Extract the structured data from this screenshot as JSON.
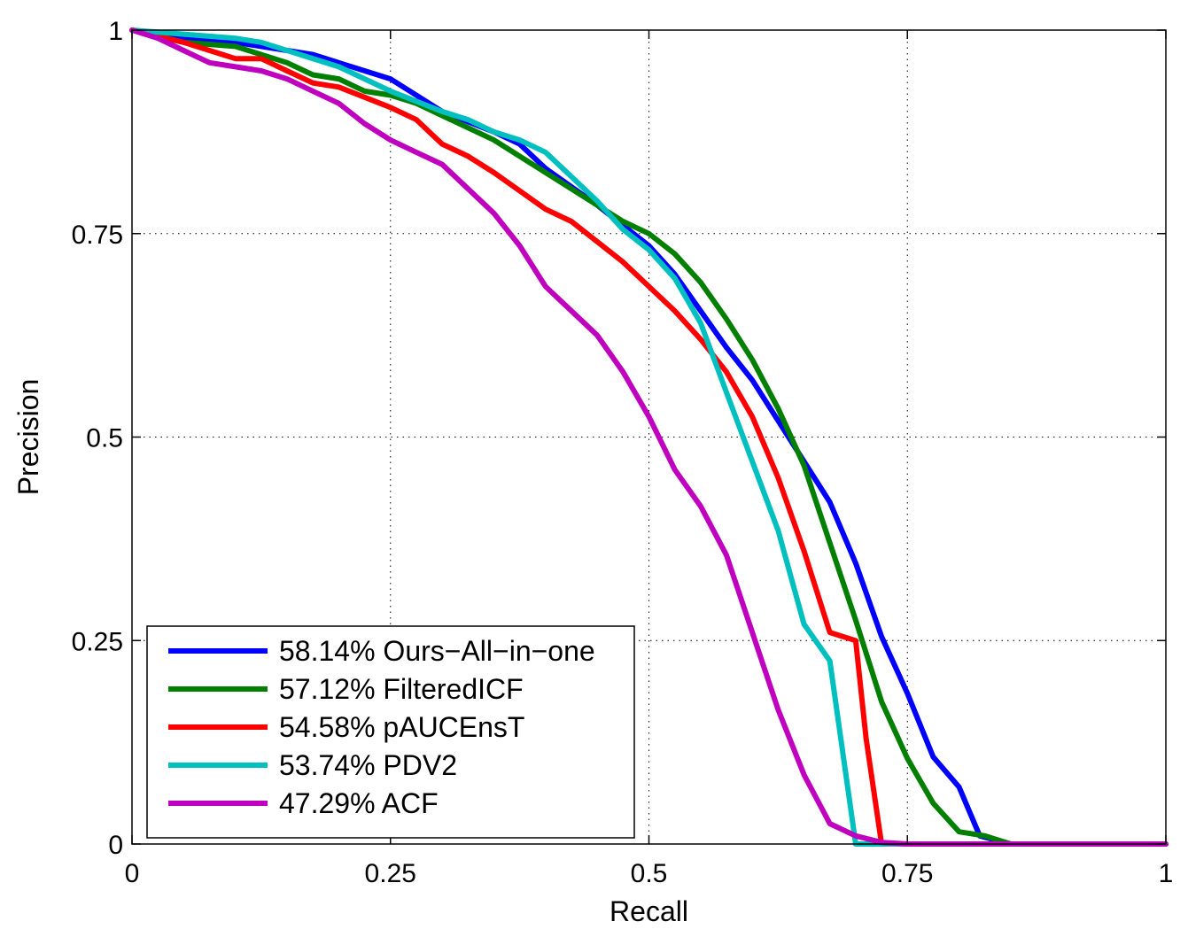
{
  "chart_data": {
    "type": "line",
    "title": "",
    "xlabel": "Recall",
    "ylabel": "Precision",
    "xlim": [
      0,
      1
    ],
    "ylim": [
      0,
      1
    ],
    "x_ticks": [
      0,
      0.25,
      0.5,
      0.75,
      1
    ],
    "x_tick_labels": [
      "0",
      "0.25",
      "0.5",
      "0.75",
      "1"
    ],
    "y_ticks": [
      0,
      0.25,
      0.5,
      0.75,
      1
    ],
    "y_tick_labels": [
      "0",
      "0.25",
      "0.5",
      "0.75",
      "1"
    ],
    "grid": true,
    "legend_position": "bottom-left",
    "series": [
      {
        "name": "Ours-All-in-one",
        "legend_label": "58.14% Ours−All−in−one",
        "color": "#0000ff",
        "x": [
          0,
          0.05,
          0.1,
          0.15,
          0.175,
          0.2,
          0.25,
          0.3,
          0.35,
          0.375,
          0.4,
          0.45,
          0.5,
          0.525,
          0.55,
          0.575,
          0.6,
          0.625,
          0.65,
          0.675,
          0.7,
          0.725,
          0.75,
          0.775,
          0.8,
          0.82,
          0.85,
          0.9,
          1.0
        ],
        "y": [
          1,
          0.99,
          0.985,
          0.975,
          0.97,
          0.96,
          0.94,
          0.9,
          0.875,
          0.86,
          0.83,
          0.785,
          0.735,
          0.7,
          0.655,
          0.61,
          0.57,
          0.52,
          0.47,
          0.42,
          0.345,
          0.255,
          0.185,
          0.107,
          0.07,
          0.01,
          0.0,
          0.0,
          0.0
        ]
      },
      {
        "name": "FilteredICF",
        "legend_label": "57.12% FilteredICF",
        "color": "#007f00",
        "x": [
          0,
          0.05,
          0.1,
          0.15,
          0.175,
          0.2,
          0.225,
          0.25,
          0.275,
          0.3,
          0.35,
          0.4,
          0.45,
          0.475,
          0.5,
          0.525,
          0.55,
          0.575,
          0.6,
          0.625,
          0.65,
          0.675,
          0.7,
          0.725,
          0.75,
          0.775,
          0.8,
          0.825,
          0.85,
          0.9,
          1.0
        ],
        "y": [
          1,
          0.985,
          0.98,
          0.96,
          0.945,
          0.94,
          0.925,
          0.92,
          0.91,
          0.895,
          0.865,
          0.825,
          0.785,
          0.765,
          0.75,
          0.725,
          0.69,
          0.645,
          0.595,
          0.535,
          0.465,
          0.37,
          0.275,
          0.175,
          0.105,
          0.05,
          0.015,
          0.01,
          0.0,
          0.0,
          0.0
        ]
      },
      {
        "name": "pAUCEnsT",
        "legend_label": "54.58% pAUCEnsT",
        "color": "#ff0000",
        "x": [
          0,
          0.05,
          0.1,
          0.125,
          0.15,
          0.175,
          0.2,
          0.25,
          0.275,
          0.3,
          0.325,
          0.35,
          0.4,
          0.425,
          0.45,
          0.475,
          0.5,
          0.525,
          0.55,
          0.575,
          0.6,
          0.625,
          0.65,
          0.675,
          0.7,
          0.71,
          0.725,
          0.75,
          1.0
        ],
        "y": [
          1,
          0.985,
          0.965,
          0.965,
          0.95,
          0.935,
          0.93,
          0.905,
          0.89,
          0.86,
          0.845,
          0.825,
          0.78,
          0.765,
          0.74,
          0.715,
          0.685,
          0.655,
          0.62,
          0.58,
          0.525,
          0.45,
          0.36,
          0.26,
          0.25,
          0.13,
          0.0,
          0.0,
          0.0
        ]
      },
      {
        "name": "PDV2",
        "legend_label": "53.74% PDV2",
        "color": "#00bfbf",
        "x": [
          0,
          0.1,
          0.125,
          0.15,
          0.2,
          0.25,
          0.3,
          0.325,
          0.35,
          0.375,
          0.4,
          0.45,
          0.475,
          0.5,
          0.525,
          0.55,
          0.575,
          0.6,
          0.625,
          0.65,
          0.675,
          0.7,
          0.75,
          1.0
        ],
        "y": [
          1,
          0.99,
          0.985,
          0.975,
          0.955,
          0.925,
          0.9,
          0.89,
          0.875,
          0.865,
          0.85,
          0.79,
          0.755,
          0.73,
          0.695,
          0.64,
          0.555,
          0.47,
          0.385,
          0.27,
          0.225,
          0.0,
          0.0,
          0.0
        ]
      },
      {
        "name": "ACF",
        "legend_label": "47.29% ACF",
        "color": "#bf00bf",
        "x": [
          0,
          0.025,
          0.05,
          0.075,
          0.1,
          0.125,
          0.15,
          0.175,
          0.2,
          0.225,
          0.25,
          0.275,
          0.3,
          0.325,
          0.35,
          0.375,
          0.4,
          0.425,
          0.45,
          0.475,
          0.5,
          0.525,
          0.55,
          0.575,
          0.6,
          0.625,
          0.65,
          0.675,
          0.7,
          0.725,
          0.75,
          1.0
        ],
        "y": [
          1,
          0.99,
          0.975,
          0.96,
          0.955,
          0.95,
          0.94,
          0.925,
          0.91,
          0.885,
          0.865,
          0.85,
          0.835,
          0.805,
          0.775,
          0.735,
          0.685,
          0.655,
          0.625,
          0.58,
          0.525,
          0.46,
          0.415,
          0.355,
          0.26,
          0.165,
          0.085,
          0.025,
          0.01,
          0.002,
          0.0,
          0.0
        ]
      }
    ]
  }
}
